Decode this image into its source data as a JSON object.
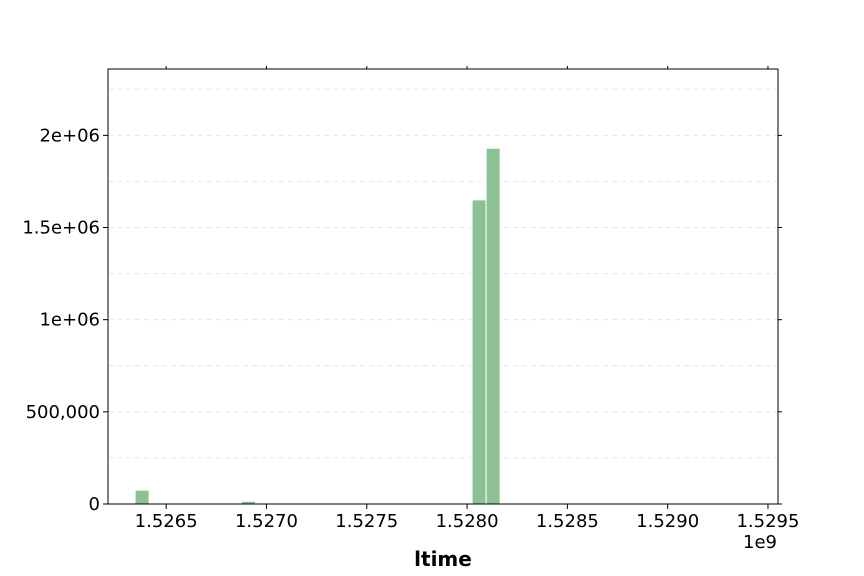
{
  "chart_data": {
    "type": "bar",
    "xlabel": "ltime",
    "ylabel": "",
    "x_offset_label": "1e9",
    "xlim": [
      1.52621,
      1.52955
    ],
    "ylim": [
      0,
      2360000
    ],
    "x_ticks": [
      1.5265,
      1.527,
      1.5275,
      1.528,
      1.5285,
      1.529,
      1.5295
    ],
    "x_tick_labels": [
      "1.5265",
      "1.5270",
      "1.5275",
      "1.5280",
      "1.5285",
      "1.5290",
      "1.5295"
    ],
    "y_ticks": [
      0,
      500000,
      1000000,
      1500000,
      2000000
    ],
    "y_tick_labels": [
      "0",
      "500,000",
      "1e+06",
      "1.5e+06",
      "2e+06"
    ],
    "bin_width": 7e-05,
    "bars": [
      {
        "x": 1.52638,
        "value": 75000
      },
      {
        "x": 1.52691,
        "value": 15000
      },
      {
        "x": 1.52806,
        "value": 1650000
      },
      {
        "x": 1.52813,
        "value": 1930000
      }
    ],
    "bar_color": "#8cc293",
    "grid": true
  }
}
